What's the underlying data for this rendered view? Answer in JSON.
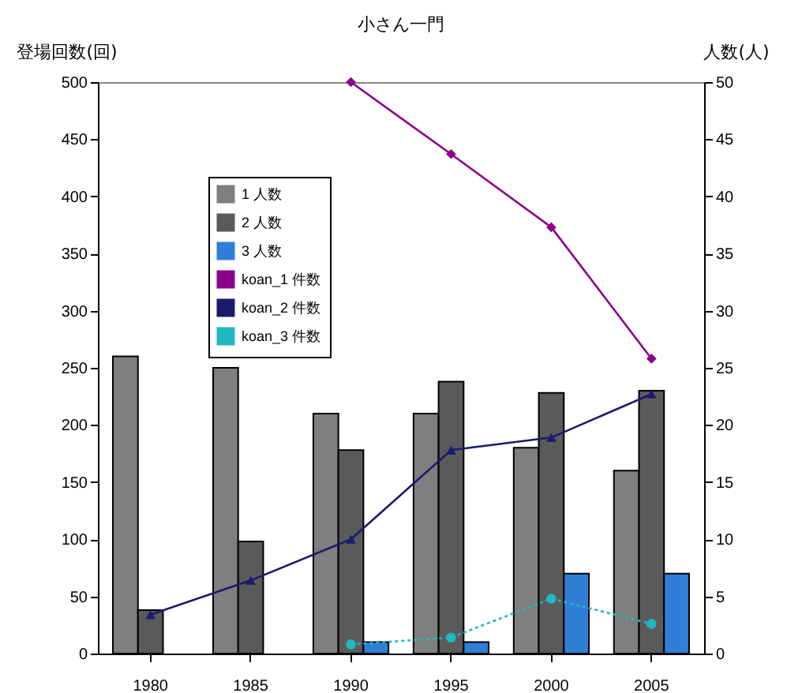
{
  "chart_data": {
    "type": "bar",
    "title": "小さん一門",
    "ylabel": "登場回数(回)",
    "y2label": "人数(人)",
    "categories": [
      "1980",
      "1985",
      "1990",
      "1995",
      "2000",
      "2005"
    ],
    "series": [
      {
        "name": "1 人数",
        "color": "#7f7f7f",
        "values": [
          260,
          250,
          210,
          210,
          180,
          160
        ]
      },
      {
        "name": "2 人数",
        "color": "#5a5a5a",
        "values": [
          38,
          98,
          178,
          238,
          228,
          230
        ]
      },
      {
        "name": "3 人数",
        "color": "#2f7fd8",
        "values": [
          null,
          null,
          10,
          10,
          70,
          70
        ]
      },
      {
        "name": "koan_1 件数",
        "type": "line",
        "axis": "y2",
        "color": "#8b008b",
        "marker": "diamond",
        "line_style": "solid",
        "values": [
          null,
          null,
          50,
          43.7,
          37.3,
          25.8
        ]
      },
      {
        "name": "koan_2 件数",
        "type": "line",
        "axis": "y2",
        "color": "#1a1a6e",
        "marker": "triangle",
        "line_style": "solid",
        "values": [
          3.4,
          6.4,
          10,
          17.8,
          18.9,
          22.7
        ]
      },
      {
        "name": "koan_3 件数",
        "type": "line",
        "axis": "y2",
        "color": "#20b8c0",
        "marker": "circle",
        "line_style": "dotted",
        "values": [
          null,
          null,
          0.8,
          1.4,
          4.8,
          2.6
        ]
      }
    ],
    "ylim": [
      0,
      500
    ],
    "yticks": [
      0,
      50,
      100,
      150,
      200,
      250,
      300,
      350,
      400,
      450,
      500
    ],
    "y2lim": [
      0,
      50
    ],
    "y2ticks": [
      0,
      5,
      10,
      15,
      20,
      25,
      30,
      35,
      40,
      45,
      50
    ],
    "legend": "top left",
    "grid": false
  }
}
